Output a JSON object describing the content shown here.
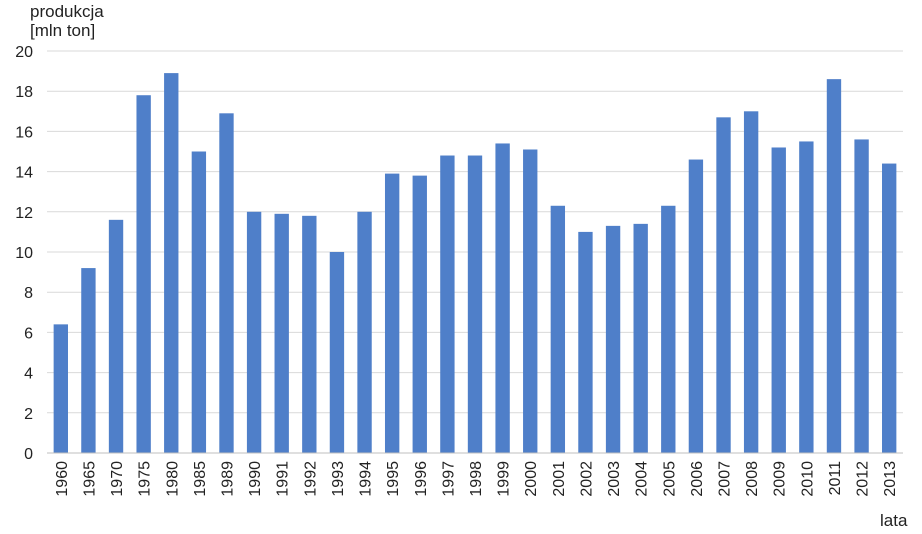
{
  "chart_data": {
    "type": "bar",
    "ylabel_lines": [
      "produkcja",
      "[mln ton]"
    ],
    "xlabel": "lata",
    "ylim": [
      0,
      20
    ],
    "yticks": [
      0,
      2,
      4,
      6,
      8,
      10,
      12,
      14,
      16,
      18,
      20
    ],
    "grid": true,
    "bar_color": "#4f7fc9",
    "categories": [
      "1960",
      "1965",
      "1970",
      "1975",
      "1980",
      "1985",
      "1989",
      "1990",
      "1991",
      "1992",
      "1993",
      "1994",
      "1995",
      "1996",
      "1997",
      "1998",
      "1999",
      "2000",
      "2001",
      "2002",
      "2003",
      "2004",
      "2005",
      "2006",
      "2007",
      "2008",
      "2009",
      "2010",
      "2011",
      "2012",
      "2013"
    ],
    "values": [
      6.4,
      9.2,
      11.6,
      17.8,
      18.9,
      15.0,
      16.9,
      12.0,
      11.9,
      11.8,
      10.0,
      12.0,
      13.9,
      13.8,
      14.8,
      14.8,
      15.4,
      15.1,
      12.3,
      11.0,
      11.3,
      11.4,
      12.3,
      14.6,
      16.7,
      17.0,
      15.2,
      15.5,
      18.6,
      15.6,
      14.4
    ]
  }
}
